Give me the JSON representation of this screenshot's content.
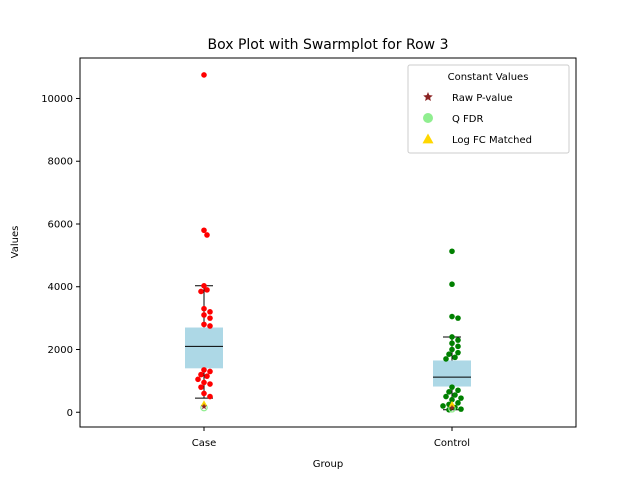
{
  "chart_data": {
    "type": "box",
    "title": "Box Plot with Swarmplot for Row 3",
    "xlabel": "Group",
    "ylabel": "Values",
    "ylim": [
      -470,
      11290
    ],
    "yticks": [
      0,
      2000,
      4000,
      6000,
      8000,
      10000
    ],
    "ytick_labels": [
      "0",
      "2000",
      "4000",
      "6000",
      "8000",
      "10000"
    ],
    "categories": [
      "Case",
      "Control"
    ],
    "colors": {
      "box_fill": "#add8e6",
      "median_line": "#000000",
      "whisker": "#000000",
      "case_points": "#ff0000",
      "control_points": "#008000",
      "raw_p_marker": "#8b2323",
      "q_fdr_marker": "#90ee90",
      "log_fc_marker": "#ffd700"
    },
    "boxes": [
      {
        "category": "Case",
        "q1": 1400,
        "median": 2100,
        "q3": 2700,
        "whisker_low": 450,
        "whisker_high": 4030
      },
      {
        "category": "Control",
        "q1": 820,
        "median": 1120,
        "q3": 1650,
        "whisker_low": 80,
        "whisker_high": 2400
      }
    ],
    "swarm": [
      {
        "category": "Case",
        "values": [
          10750,
          5800,
          5650,
          4030,
          3900,
          3850,
          3300,
          3200,
          3100,
          3000,
          2800,
          2750,
          1350,
          1300,
          1200,
          1150,
          1050,
          950,
          900,
          800,
          600,
          500
        ]
      },
      {
        "category": "Control",
        "values": [
          5130,
          4080,
          3050,
          3000,
          2400,
          2300,
          2200,
          2100,
          2000,
          1900,
          1850,
          1750,
          1700,
          800,
          700,
          650,
          550,
          500,
          450,
          400,
          300,
          250,
          200,
          150,
          100,
          80
        ]
      }
    ],
    "constant_markers": [
      {
        "category": "Case",
        "raw_p_value": 180,
        "q_fdr": 150,
        "log_fc_matched": 280
      },
      {
        "category": "Control",
        "raw_p_value": 140,
        "q_fdr": 110,
        "log_fc_matched": 260
      }
    ],
    "legend": {
      "title": "Constant Values",
      "position": "upper-right",
      "entries": [
        {
          "label": "Raw P-value",
          "marker": "star",
          "color": "#8b2323"
        },
        {
          "label": "Q FDR",
          "marker": "circle",
          "color": "#90ee90"
        },
        {
          "label": "Log FC Matched",
          "marker": "triangle",
          "color": "#ffd700"
        }
      ]
    }
  }
}
